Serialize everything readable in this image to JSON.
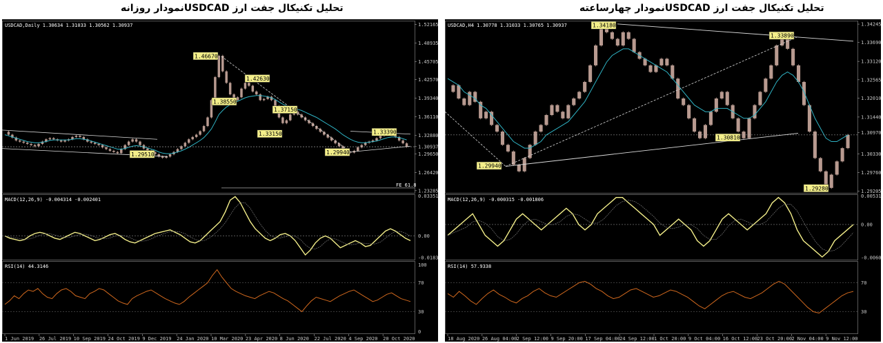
{
  "page": {
    "title_left": "تحلیل تکنیکال جفت ارز  USDCADنمودار روزانه",
    "title_right": "تحلیل تکنیکال جفت ارز  USDCADنمودار چهارساعته"
  },
  "colors": {
    "background": "#000000",
    "candle": "#b89a90",
    "ma": "#2fb3c4",
    "macd": "#f4ef8a",
    "rsi": "#d2691e",
    "trend": "#dddddd",
    "label_box": "#f4ef8a"
  },
  "chart_data": [
    {
      "type": "line",
      "panel": "left",
      "symbol_text": "USDCAD,Daily  1.30634 1.31033 1.30562 1.30937",
      "price_axis": [
        "1.52165",
        "1.48935",
        "1.45705",
        "1.42570",
        "1.39340",
        "1.36110",
        "1.32880",
        "1.30937",
        "1.29650",
        "1.26420",
        "1.23285"
      ],
      "ylim": [
        1.229,
        1.528
      ],
      "xlabels": [
        "1 Jun 2019",
        "26 Jul 2019",
        "10 Sep 2019",
        "24 Oct 2019",
        "9 Dec 2019",
        "24 Jan 2020",
        "10 Mar 2020",
        "23 Apr 2020",
        "8 Jun 2020",
        "22 Jul 2020",
        "4 Sep 2020",
        "20 Oct 2020"
      ],
      "price_series": [
        1.335,
        1.33,
        1.325,
        1.32,
        1.318,
        1.316,
        1.314,
        1.312,
        1.31,
        1.314,
        1.318,
        1.322,
        1.324,
        1.322,
        1.32,
        1.318,
        1.32,
        1.322,
        1.326,
        1.328,
        1.326,
        1.322,
        1.318,
        1.316,
        1.314,
        1.312,
        1.308,
        1.305,
        1.302,
        1.3,
        1.298,
        1.305,
        1.312,
        1.318,
        1.322,
        1.318,
        1.312,
        1.306,
        1.302,
        1.3,
        1.296,
        1.292,
        1.29,
        1.292,
        1.296,
        1.3,
        1.305,
        1.31,
        1.316,
        1.322,
        1.326,
        1.33,
        1.336,
        1.345,
        1.36,
        1.39,
        1.43,
        1.467,
        1.44,
        1.42,
        1.4,
        1.39,
        1.395,
        1.41,
        1.42,
        1.415,
        1.405,
        1.4,
        1.39,
        1.392,
        1.396,
        1.39,
        1.38,
        1.36,
        1.35,
        1.355,
        1.365,
        1.37,
        1.365,
        1.36,
        1.355,
        1.35,
        1.345,
        1.34,
        1.335,
        1.33,
        1.325,
        1.32,
        1.315,
        1.31,
        1.305,
        1.3,
        1.299,
        1.302,
        1.308,
        1.312,
        1.316,
        1.318,
        1.32,
        1.324,
        1.328,
        1.332,
        1.334,
        1.33,
        1.326,
        1.32,
        1.315,
        1.309
      ],
      "ma_series": [
        1.33,
        1.328,
        1.326,
        1.324,
        1.322,
        1.32,
        1.318,
        1.317,
        1.316,
        1.316,
        1.317,
        1.318,
        1.32,
        1.321,
        1.321,
        1.321,
        1.321,
        1.321,
        1.322,
        1.323,
        1.323,
        1.322,
        1.321,
        1.319,
        1.317,
        1.315,
        1.313,
        1.311,
        1.309,
        1.307,
        1.305,
        1.305,
        1.306,
        1.308,
        1.31,
        1.311,
        1.31,
        1.309,
        1.307,
        1.305,
        1.303,
        1.3,
        1.298,
        1.297,
        1.297,
        1.298,
        1.3,
        1.302,
        1.305,
        1.308,
        1.312,
        1.316,
        1.32,
        1.325,
        1.332,
        1.34,
        1.352,
        1.365,
        1.372,
        1.378,
        1.382,
        1.385,
        1.388,
        1.391,
        1.394,
        1.396,
        1.397,
        1.398,
        1.398,
        1.397,
        1.396,
        1.394,
        1.391,
        1.387,
        1.383,
        1.38,
        1.378,
        1.376,
        1.374,
        1.372,
        1.369,
        1.366,
        1.363,
        1.36,
        1.356,
        1.352,
        1.348,
        1.344,
        1.34,
        1.335,
        1.33,
        1.326,
        1.322,
        1.319,
        1.317,
        1.316,
        1.316,
        1.317,
        1.318,
        1.319,
        1.321,
        1.323,
        1.325,
        1.326,
        1.326,
        1.325,
        1.323,
        1.321
      ],
      "price_labels": [
        "1.46670",
        "1.42630",
        "1.38550",
        "1.37150",
        "1.33150",
        "1.33390",
        "1.29940",
        "1.29510"
      ],
      "fe_label": "FE 61.8",
      "macd": {
        "header": "MACD(12,26,9) -0.004314 -0.002401",
        "axis": [
          "0.033515",
          "0.00",
          "-0.018324"
        ],
        "ylim": [
          -0.02,
          0.035
        ],
        "values": [
          0.0,
          -0.002,
          -0.003,
          -0.004,
          -0.003,
          0.0,
          0.002,
          0.003,
          0.002,
          0.0,
          -0.002,
          -0.003,
          -0.001,
          0.001,
          0.003,
          0.002,
          0.0,
          -0.002,
          -0.004,
          -0.003,
          -0.001,
          0.001,
          0.002,
          0.0,
          -0.003,
          -0.005,
          -0.006,
          -0.004,
          -0.002,
          0.0,
          0.002,
          0.003,
          0.004,
          0.005,
          0.003,
          0.001,
          -0.002,
          -0.005,
          -0.006,
          -0.004,
          0.0,
          0.004,
          0.008,
          0.012,
          0.02,
          0.03,
          0.033,
          0.028,
          0.02,
          0.012,
          0.006,
          0.002,
          -0.002,
          -0.004,
          -0.002,
          0.001,
          0.002,
          0.0,
          -0.004,
          -0.01,
          -0.016,
          -0.012,
          -0.006,
          -0.002,
          0.0,
          -0.002,
          -0.006,
          -0.01,
          -0.008,
          -0.006,
          -0.004,
          -0.006,
          -0.009,
          -0.008,
          -0.004,
          0.0,
          0.004,
          0.006,
          0.004,
          0.001,
          -0.002,
          -0.004
        ]
      },
      "rsi": {
        "header": "RSI(14) 44.3146",
        "axis": [
          "100",
          "70",
          "30",
          "0"
        ],
        "ylim": [
          0,
          100
        ],
        "values": [
          40,
          45,
          52,
          48,
          55,
          60,
          58,
          62,
          55,
          50,
          48,
          55,
          60,
          62,
          58,
          52,
          50,
          48,
          55,
          58,
          62,
          60,
          55,
          50,
          45,
          42,
          40,
          48,
          52,
          55,
          58,
          60,
          56,
          52,
          48,
          45,
          42,
          40,
          44,
          50,
          55,
          60,
          65,
          70,
          80,
          88,
          78,
          70,
          62,
          58,
          55,
          52,
          50,
          48,
          52,
          55,
          58,
          56,
          52,
          48,
          45,
          40,
          35,
          30,
          38,
          45,
          50,
          48,
          46,
          44,
          48,
          52,
          55,
          58,
          60,
          56,
          52,
          48,
          44,
          46,
          50,
          54,
          56,
          52,
          48,
          46,
          44
        ]
      }
    },
    {
      "type": "line",
      "panel": "right",
      "symbol_text": "USDCAD,H4  1.30778 1.31033 1.30765 1.30937",
      "price_axis": [
        "1.34245",
        "1.33690",
        "1.33120",
        "1.32565",
        "1.32010",
        "1.31440",
        "1.30970",
        "1.30330",
        "1.29760",
        "1.29205"
      ],
      "ylim": [
        1.2915,
        1.3435
      ],
      "xlabels": [
        "18 Aug 2020",
        "26 Aug 04:00",
        "2 Sep 12:00",
        "9 Sep 20:00",
        "17 Sep 04:00",
        "24 Sep 12:00",
        "1 Oct 20:00",
        "9 Oct 04:00",
        "16 Oct 12:00",
        "23 Oct 20:00",
        "2 Nov 04:00",
        "9 Nov 12:00"
      ],
      "price_series": [
        1.322,
        1.324,
        1.32,
        1.318,
        1.322,
        1.319,
        1.314,
        1.316,
        1.312,
        1.31,
        1.306,
        1.304,
        1.3,
        1.298,
        1.302,
        1.306,
        1.31,
        1.312,
        1.315,
        1.318,
        1.316,
        1.314,
        1.318,
        1.32,
        1.322,
        1.325,
        1.33,
        1.336,
        1.341,
        1.34,
        1.338,
        1.336,
        1.34,
        1.338,
        1.334,
        1.332,
        1.33,
        1.328,
        1.33,
        1.332,
        1.33,
        1.326,
        1.32,
        1.318,
        1.314,
        1.31,
        1.308,
        1.312,
        1.316,
        1.32,
        1.322,
        1.318,
        1.314,
        1.31,
        1.308,
        1.314,
        1.318,
        1.322,
        1.326,
        1.33,
        1.336,
        1.338,
        1.335,
        1.33,
        1.325,
        1.318,
        1.31,
        1.302,
        1.298,
        1.293,
        1.297,
        1.301,
        1.305,
        1.309
      ],
      "ma_series": [
        1.326,
        1.325,
        1.324,
        1.322,
        1.321,
        1.32,
        1.318,
        1.317,
        1.315,
        1.313,
        1.311,
        1.309,
        1.307,
        1.306,
        1.305,
        1.305,
        1.306,
        1.307,
        1.309,
        1.31,
        1.311,
        1.312,
        1.313,
        1.315,
        1.317,
        1.319,
        1.322,
        1.325,
        1.328,
        1.331,
        1.333,
        1.334,
        1.335,
        1.335,
        1.334,
        1.333,
        1.332,
        1.331,
        1.33,
        1.329,
        1.328,
        1.326,
        1.324,
        1.322,
        1.32,
        1.318,
        1.317,
        1.316,
        1.316,
        1.317,
        1.317,
        1.317,
        1.316,
        1.315,
        1.314,
        1.314,
        1.315,
        1.317,
        1.319,
        1.322,
        1.325,
        1.327,
        1.328,
        1.327,
        1.325,
        1.322,
        1.318,
        1.314,
        1.311,
        1.308,
        1.307,
        1.307,
        1.308,
        1.309
      ],
      "price_labels": [
        "1.34180",
        "1.33890",
        "1.30810",
        "1.29940",
        "1.29280"
      ],
      "macd": {
        "header": "MACD(12,26,9) -0.000315 -0.001806",
        "axis": [
          "0.005312",
          "0.00",
          "-0.006092"
        ],
        "ylim": [
          -0.0065,
          0.0056
        ],
        "values": [
          -0.002,
          -0.001,
          0.0,
          0.001,
          0.002,
          0.0,
          -0.002,
          -0.003,
          -0.004,
          -0.003,
          -0.001,
          0.001,
          0.002,
          0.001,
          0.0,
          -0.001,
          0.0,
          0.001,
          0.002,
          0.003,
          0.002,
          0.0,
          -0.001,
          0.0,
          0.002,
          0.003,
          0.004,
          0.005,
          0.005,
          0.004,
          0.003,
          0.002,
          0.001,
          0.0,
          -0.002,
          -0.001,
          0.0,
          0.001,
          0.0,
          -0.001,
          -0.003,
          -0.004,
          -0.003,
          -0.001,
          0.001,
          0.002,
          0.001,
          0.0,
          -0.001,
          0.0,
          0.001,
          0.002,
          0.004,
          0.005,
          0.004,
          0.002,
          -0.001,
          -0.003,
          -0.004,
          -0.005,
          -0.006,
          -0.005,
          -0.003,
          -0.002,
          -0.001,
          0.0
        ]
      },
      "rsi": {
        "header": "RSI(14) 57.9338",
        "axis": [
          "70",
          "30"
        ],
        "ylim": [
          0,
          100
        ],
        "values": [
          55,
          50,
          58,
          52,
          45,
          40,
          48,
          55,
          60,
          54,
          50,
          45,
          42,
          48,
          52,
          58,
          62,
          56,
          52,
          50,
          55,
          60,
          65,
          70,
          72,
          68,
          62,
          58,
          52,
          48,
          50,
          55,
          60,
          62,
          58,
          54,
          50,
          52,
          56,
          60,
          58,
          54,
          50,
          44,
          38,
          34,
          40,
          46,
          52,
          56,
          58,
          54,
          50,
          48,
          52,
          56,
          62,
          68,
          72,
          68,
          60,
          52,
          44,
          36,
          30,
          28,
          34,
          40,
          46,
          52,
          56,
          58
        ]
      }
    }
  ]
}
